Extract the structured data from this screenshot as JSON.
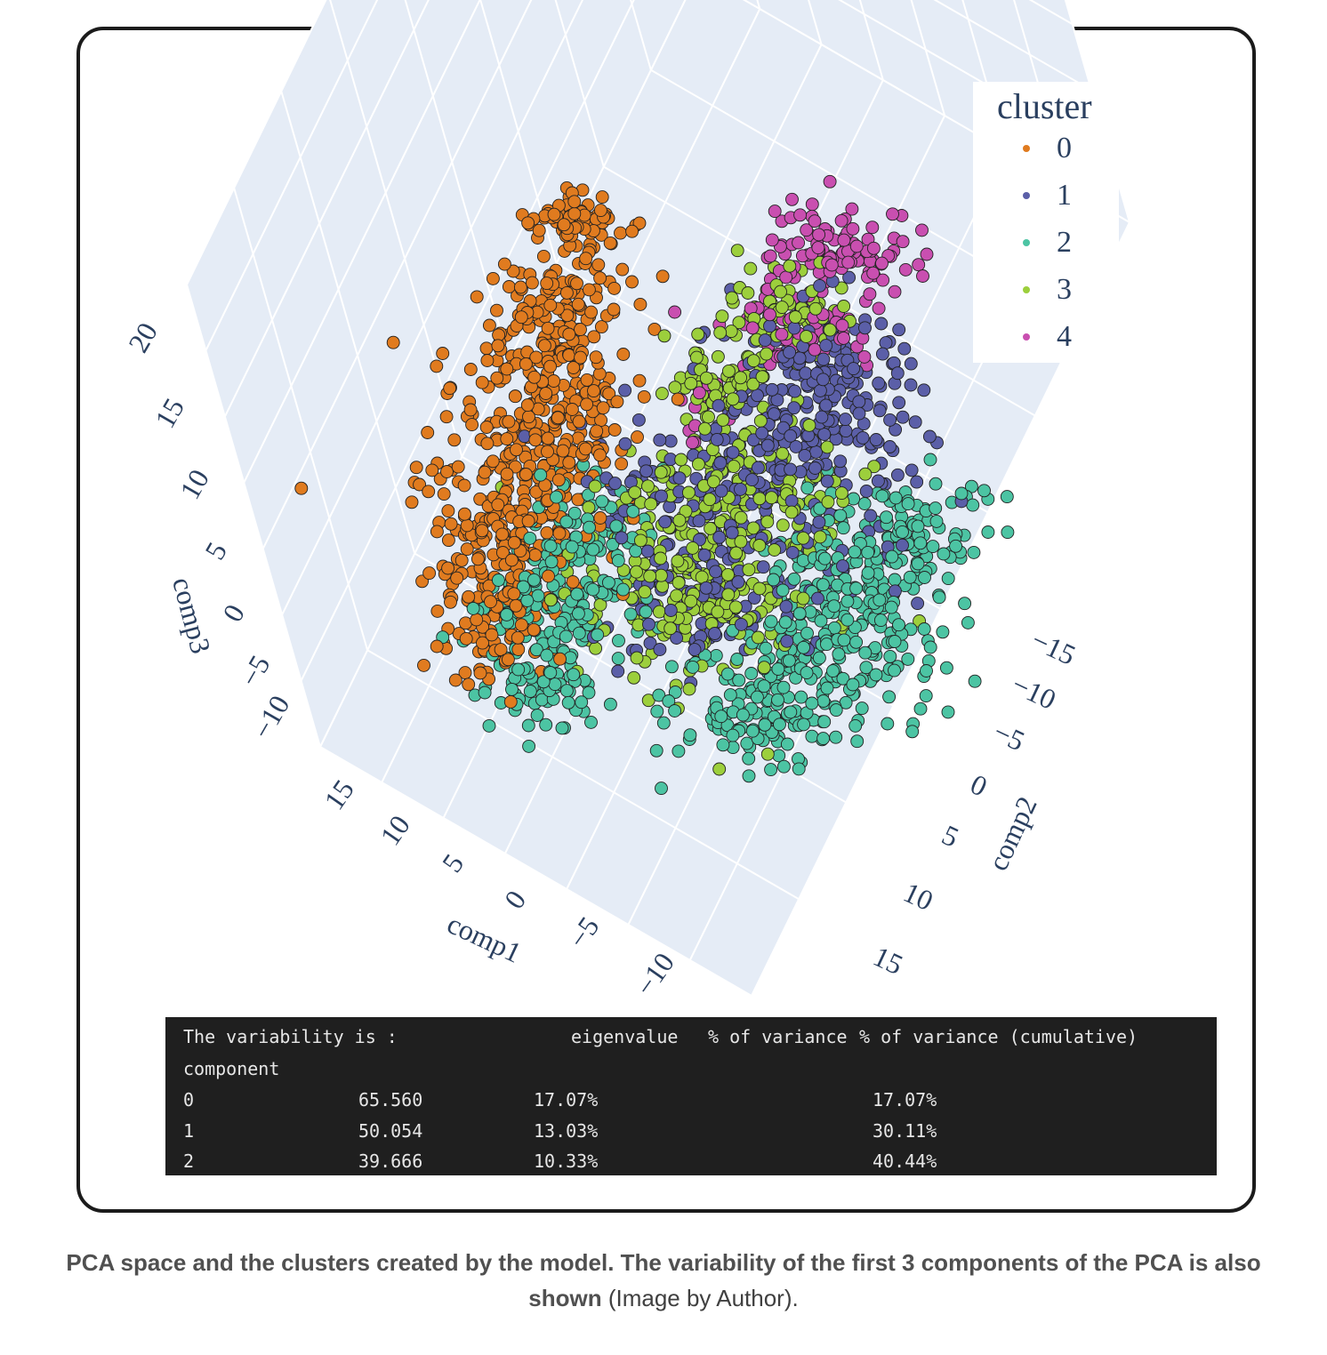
{
  "chart_data": {
    "type": "scatter",
    "subtype": "3d-scatter",
    "axes": {
      "comp1": {
        "label": "comp1",
        "ticks": [
          "15",
          "10",
          "5",
          "0",
          "−5",
          "−10"
        ]
      },
      "comp2": {
        "label": "comp2",
        "ticks": [
          "−15",
          "−10",
          "−5",
          "0",
          "5",
          "10",
          "15"
        ]
      },
      "comp3": {
        "label": "comp3",
        "ticks": [
          "20",
          "15",
          "10",
          "5",
          "0",
          "−5",
          "−10"
        ]
      }
    },
    "legend": {
      "title": "cluster",
      "placement": "top-right",
      "entries": [
        {
          "label": "0",
          "color": "#e07b1f"
        },
        {
          "label": "1",
          "color": "#5b5fa8"
        },
        {
          "label": "2",
          "color": "#4cc4a3"
        },
        {
          "label": "3",
          "color": "#9ccf3c"
        },
        {
          "label": "4",
          "color": "#c94fb0"
        }
      ]
    },
    "series": [
      {
        "name": "0",
        "color": "#e07b1f",
        "approx_center": {
          "comp1": 10,
          "comp2": -15,
          "comp3": 8
        }
      },
      {
        "name": "1",
        "color": "#5b5fa8",
        "approx_center": {
          "comp1": -5,
          "comp2": -5,
          "comp3": 8
        }
      },
      {
        "name": "2",
        "color": "#4cc4a3",
        "approx_center": {
          "comp1": 0,
          "comp2": 5,
          "comp3": -5
        }
      },
      {
        "name": "3",
        "color": "#9ccf3c",
        "approx_center": {
          "comp1": -2,
          "comp2": -3,
          "comp3": 4
        }
      },
      {
        "name": "4",
        "color": "#c94fb0",
        "approx_center": {
          "comp1": -10,
          "comp2": -10,
          "comp3": 18
        }
      }
    ],
    "background": "#e5ecf6",
    "grid": true
  },
  "console": {
    "header": {
      "title": "The variability is :",
      "col1": "eigenvalue",
      "col2": "% of variance",
      "col3": "% of variance (cumulative)"
    },
    "index_name": "component",
    "rows": [
      {
        "component": "0",
        "eigenvalue": "65.560",
        "variance": "17.07%",
        "cumulative": "17.07%"
      },
      {
        "component": "1",
        "eigenvalue": "50.054",
        "variance": "13.03%",
        "cumulative": "30.11%"
      },
      {
        "component": "2",
        "eigenvalue": "39.666",
        "variance": "10.33%",
        "cumulative": "40.44%"
      }
    ]
  },
  "caption": {
    "bold": "PCA space and the clusters created by the model. The variability of the first 3 components of the PCA is also shown",
    "normal": " (Image by Author)."
  }
}
